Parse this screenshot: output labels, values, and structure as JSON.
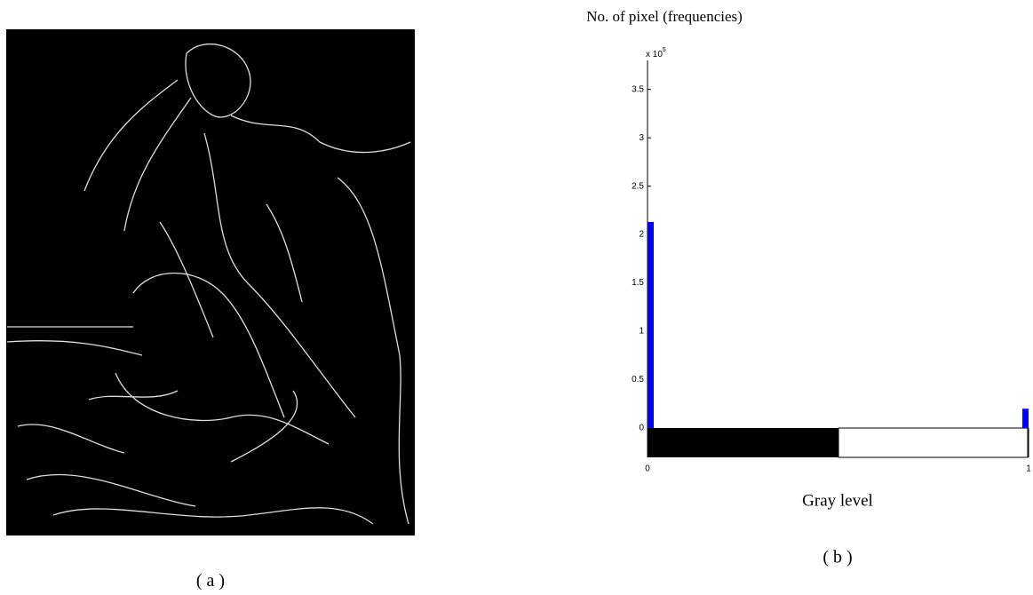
{
  "caption_a": "( a )",
  "chart_data": {
    "type": "bar",
    "caption": "( b )",
    "ylabel": "No. of pixel (frequencies)",
    "xlabel": "Gray level",
    "y_multiplier": {
      "base": "x 10",
      "exponent": "5"
    },
    "x": [
      0,
      1
    ],
    "values": [
      2.13,
      0.2
    ],
    "color": "#0000ff",
    "xlim": [
      0,
      1
    ],
    "xticks": [
      0,
      1
    ],
    "ylim": [
      0,
      3.8
    ],
    "yticks": [
      0,
      0.5,
      1,
      1.5,
      2,
      2.5,
      3,
      3.5
    ]
  }
}
